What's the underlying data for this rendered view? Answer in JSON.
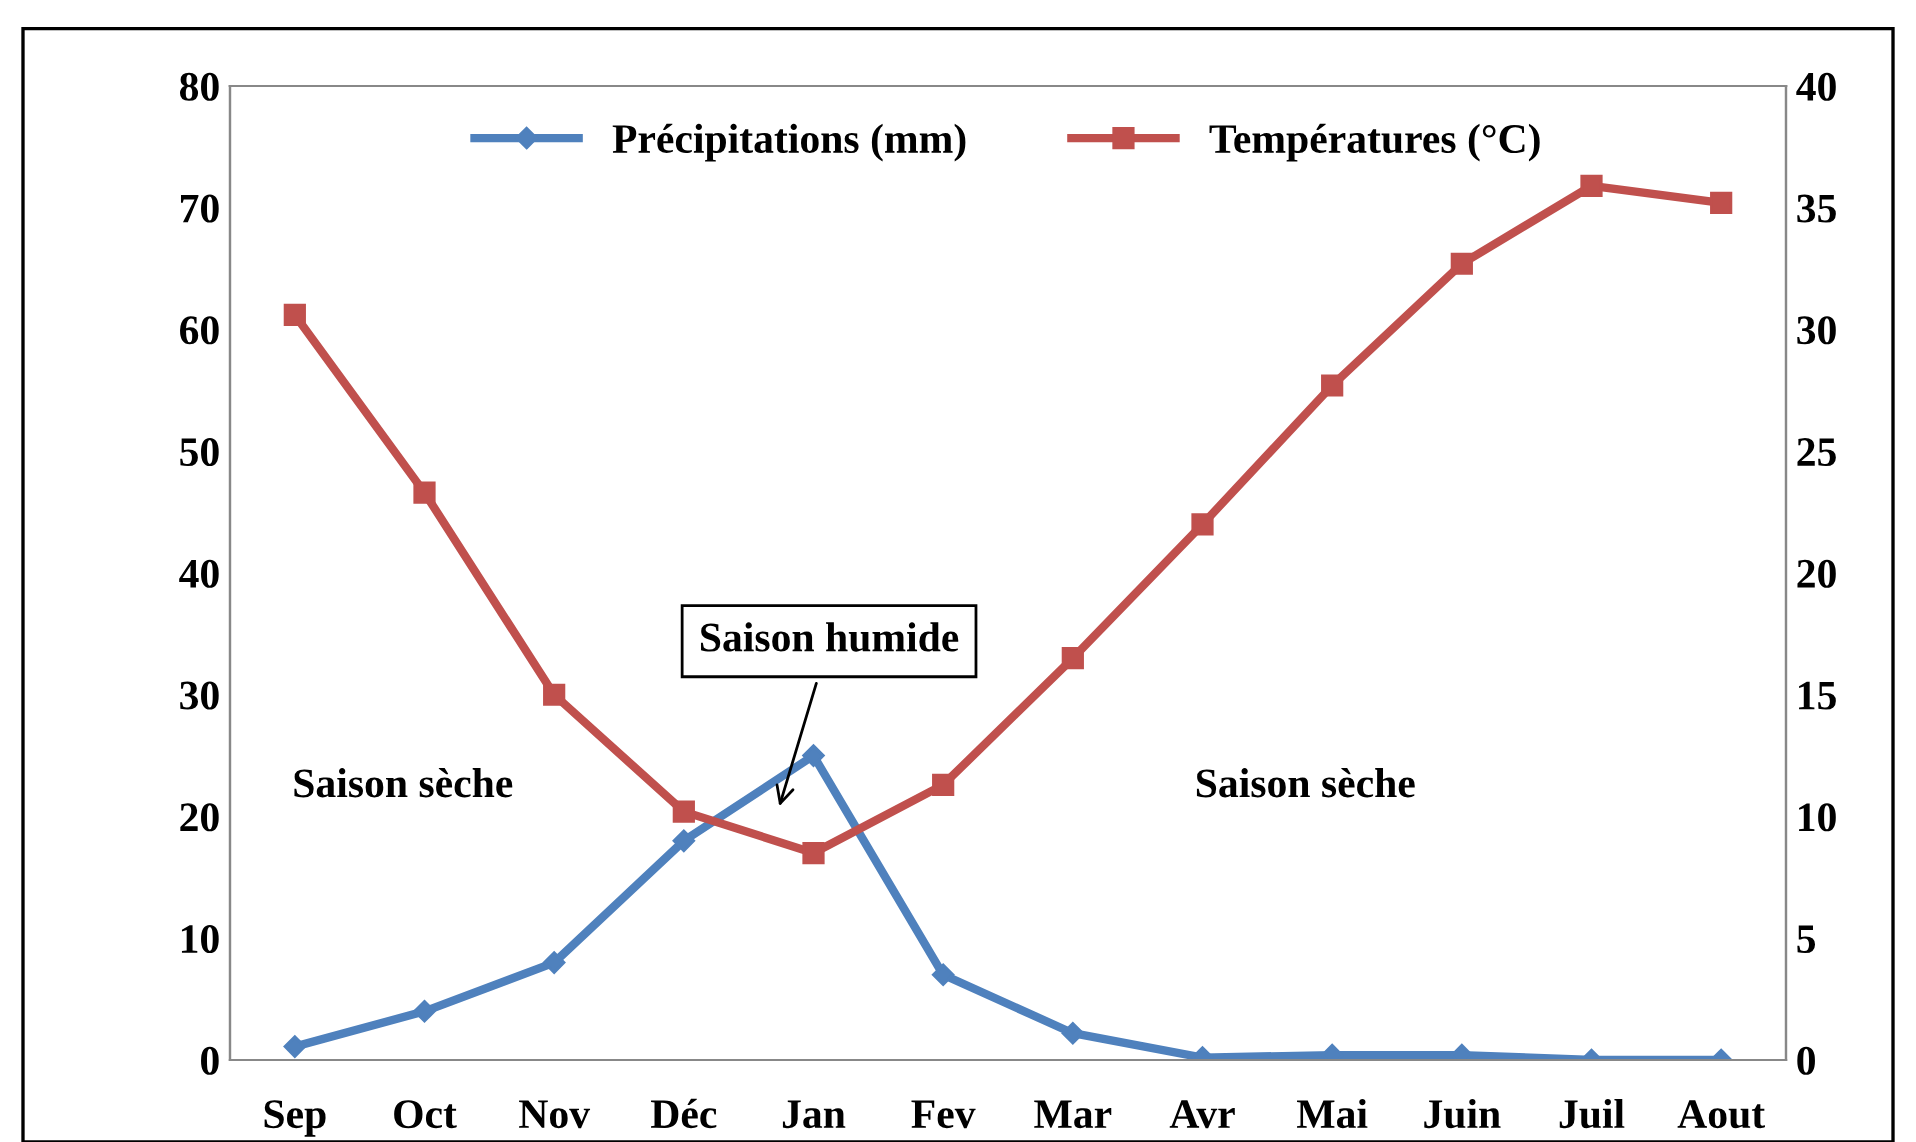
{
  "chart_data": {
    "type": "line",
    "categories": [
      "Sep",
      "Oct",
      "Nov",
      "Déc",
      "Jan",
      "Fev",
      "Mar",
      "Avr",
      "Mai",
      "Juin",
      "Juil",
      "Aout"
    ],
    "series": [
      {
        "name": "Précipitations (mm)",
        "color": "#4f81bd",
        "marker": "diamond",
        "values": [
          1.1,
          4,
          8,
          18,
          25,
          7,
          2.2,
          0.2,
          0.4,
          0.4,
          0,
          0
        ]
      },
      {
        "name": "Températures (°C)",
        "color": "#c0504d",
        "marker": "square",
        "axis": "y2",
        "values": [
          30.6,
          23.3,
          15.0,
          10.2,
          8.5,
          11.3,
          16.5,
          22.0,
          27.7,
          32.7,
          35.9,
          35.2
        ]
      }
    ],
    "ylim": [
      0,
      80
    ],
    "yticks": [
      0,
      10,
      20,
      30,
      40,
      50,
      60,
      70,
      80
    ],
    "y2lim": [
      0,
      40
    ],
    "y2ticks": [
      0,
      5,
      10,
      15,
      20,
      25,
      30,
      35,
      40
    ],
    "grid": false,
    "legend": "top",
    "line_style": "solid",
    "annotations": [
      "Saison sèche",
      "Saison humide",
      "Saison sèche"
    ]
  }
}
